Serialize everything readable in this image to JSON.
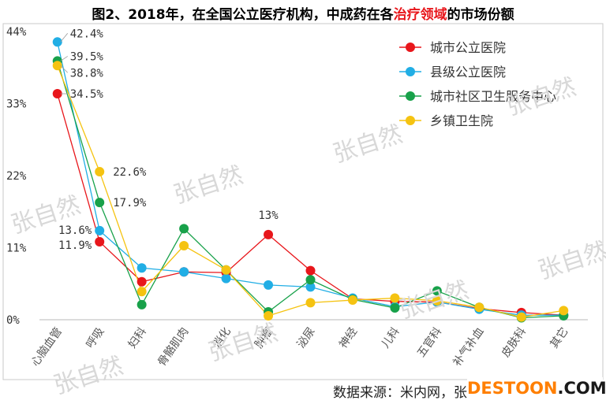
{
  "title": {
    "prefix": "图2、2018年，在全国公立医疗机构，中成药在各",
    "highlight": "治疗领域",
    "suffix": "的市场份额"
  },
  "watermark_text": "张自然",
  "source_text": "数据来源：米内网，张自然博士整理",
  "logo": {
    "part1": "DESTOON",
    "part2": ".COM"
  },
  "chart_data": {
    "type": "line",
    "title": "图2、2018年，在全国公立医疗机构，中成药在各治疗领域的市场份额",
    "categories": [
      "心脑血管",
      "呼吸",
      "妇科",
      "骨骼肌肉",
      "消化",
      "肿瘤",
      "泌尿",
      "神经",
      "儿科",
      "五官科",
      "补气补血",
      "皮肤科",
      "其它"
    ],
    "yticks": [
      "0%",
      "11%",
      "22%",
      "33%",
      "44%"
    ],
    "ylim": [
      0,
      44
    ],
    "legend_position": "top-right",
    "series": [
      {
        "name": "城市公立医院",
        "color": "#e8161b",
        "values": [
          34.5,
          11.9,
          5.8,
          7.3,
          7.2,
          13.0,
          7.5,
          3.2,
          2.8,
          2.7,
          1.7,
          1.1,
          0.7
        ]
      },
      {
        "name": "县级公立医院",
        "color": "#21aee5",
        "values": [
          42.4,
          13.6,
          7.9,
          7.3,
          6.3,
          5.3,
          5.0,
          3.3,
          2.0,
          2.7,
          1.6,
          0.7,
          0.7
        ]
      },
      {
        "name": "城市社区卫生服务中心",
        "color": "#18a14a",
        "values": [
          39.5,
          17.9,
          2.3,
          13.9,
          7.6,
          1.2,
          6.1,
          3.1,
          1.8,
          4.4,
          1.9,
          0.3,
          0.6
        ]
      },
      {
        "name": "乡镇卫生院",
        "color": "#f5c311",
        "values": [
          38.8,
          22.6,
          4.3,
          11.3,
          7.6,
          0.6,
          2.6,
          3.0,
          3.3,
          2.9,
          1.9,
          0.4,
          1.4
        ]
      }
    ],
    "data_labels": [
      {
        "text": "42.4%",
        "category": "心脑血管",
        "series": "县级公立医院"
      },
      {
        "text": "39.5%",
        "category": "心脑血管",
        "series": "城市社区卫生服务中心"
      },
      {
        "text": "38.8%",
        "category": "心脑血管",
        "series": "乡镇卫生院"
      },
      {
        "text": "34.5%",
        "category": "心脑血管",
        "series": "城市公立医院"
      },
      {
        "text": "22.6%",
        "category": "呼吸",
        "series": "乡镇卫生院"
      },
      {
        "text": "17.9%",
        "category": "呼吸",
        "series": "城市社区卫生服务中心"
      },
      {
        "text": "13.6%",
        "category": "呼吸",
        "series": "县级公立医院"
      },
      {
        "text": "11.9%",
        "category": "呼吸",
        "series": "城市公立医院"
      },
      {
        "text": "13%",
        "category": "肿瘤",
        "series": "城市公立医院"
      }
    ]
  }
}
